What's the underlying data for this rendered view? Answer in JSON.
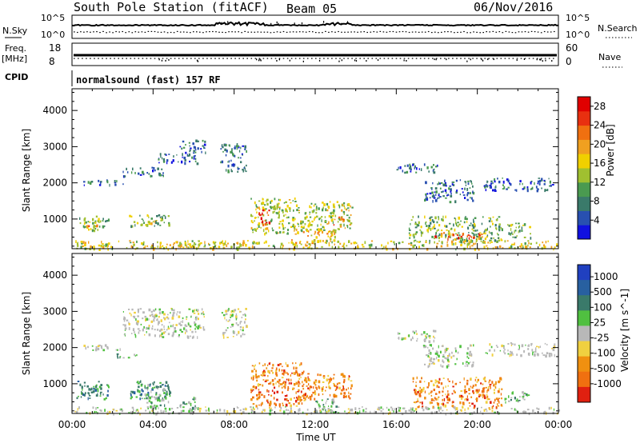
{
  "header": {
    "title": "South Pole Station (fitACF)",
    "beam": "Beam 05",
    "date": "06/Nov/2016"
  },
  "status_panels": {
    "nsky_label": "N.Sky",
    "nsearch_label": "N.Search",
    "nsky_ticks": [
      "10^5",
      "10^0"
    ],
    "nsearch_ticks": [
      "10^5",
      "10^0"
    ],
    "freq_label_1": "Freq.",
    "freq_label_2": "[MHz]",
    "freq_ticks": [
      "18",
      "8"
    ],
    "nave_label": "Nave",
    "nave_ticks": [
      "60",
      "0"
    ],
    "cpid_label": "CPID",
    "cpid_value": "normalsound (fast) 157 RF"
  },
  "chart_data": [
    {
      "type": "heatmap",
      "name": "power",
      "ylabel": "Slant Range [km]",
      "ylim": [
        180,
        4600
      ],
      "yticks": [
        1000,
        2000,
        3000,
        4000
      ],
      "xlim": [
        0,
        24
      ],
      "xticks": [
        "00:00",
        "04:00",
        "08:00",
        "12:00",
        "16:00",
        "20:00",
        "00:00"
      ],
      "colorbar": {
        "label": "Power [dB]",
        "ticks": [
          "4",
          "8",
          "12",
          "16",
          "20",
          "24",
          "28"
        ],
        "range": [
          0,
          30
        ],
        "colors": [
          "#1010e0",
          "#2850b0",
          "#3a7a6a",
          "#4a9a50",
          "#a0c030",
          "#f0d000",
          "#f0a020",
          "#f07010",
          "#e83010",
          "#e00000"
        ]
      },
      "blobs": [
        {
          "t0": 0.2,
          "t1": 1.8,
          "r0": 700,
          "r1": 1100,
          "v": 12
        },
        {
          "t0": 0.6,
          "t1": 1.2,
          "r0": 820,
          "r1": 960,
          "v": 22
        },
        {
          "t0": 2.8,
          "t1": 4.8,
          "r0": 800,
          "r1": 1150,
          "v": 12
        },
        {
          "t0": 3.6,
          "t1": 4.2,
          "r0": 880,
          "r1": 1000,
          "v": 18
        },
        {
          "t0": 0.5,
          "t1": 2.5,
          "r0": 1950,
          "r1": 2100,
          "v": 6
        },
        {
          "t0": 2.5,
          "t1": 4.5,
          "r0": 2200,
          "r1": 2450,
          "v": 6
        },
        {
          "t0": 4.2,
          "t1": 6.2,
          "r0": 2550,
          "r1": 2850,
          "v": 6
        },
        {
          "t0": 5.3,
          "t1": 6.6,
          "r0": 2850,
          "r1": 3200,
          "v": 6
        },
        {
          "t0": 7.3,
          "t1": 8.6,
          "r0": 2300,
          "r1": 3100,
          "v": 6
        },
        {
          "t0": 8.8,
          "t1": 11.0,
          "r0": 600,
          "r1": 1600,
          "v": 14
        },
        {
          "t0": 9.2,
          "t1": 9.7,
          "r0": 800,
          "r1": 1300,
          "v": 26
        },
        {
          "t0": 10.8,
          "t1": 13.0,
          "r0": 350,
          "r1": 700,
          "v": 18
        },
        {
          "t0": 11.0,
          "t1": 13.8,
          "r0": 700,
          "r1": 1500,
          "v": 14
        },
        {
          "t0": 12.8,
          "t1": 13.4,
          "r0": 850,
          "r1": 1100,
          "v": 24
        },
        {
          "t0": 16.0,
          "t1": 18.0,
          "r0": 2300,
          "r1": 2550,
          "v": 6
        },
        {
          "t0": 17.3,
          "t1": 19.8,
          "r0": 1500,
          "r1": 2100,
          "v": 6
        },
        {
          "t0": 16.6,
          "t1": 21.2,
          "r0": 380,
          "r1": 1100,
          "v": 12
        },
        {
          "t0": 17.8,
          "t1": 20.2,
          "r0": 450,
          "r1": 650,
          "v": 24
        },
        {
          "t0": 20.3,
          "t1": 23.8,
          "r0": 1800,
          "r1": 2150,
          "v": 6
        },
        {
          "t0": 21.4,
          "t1": 22.6,
          "r0": 500,
          "r1": 900,
          "v": 12
        },
        {
          "t0": 0.0,
          "t1": 24.0,
          "r0": 190,
          "r1": 420,
          "v": 16
        }
      ]
    },
    {
      "type": "heatmap",
      "name": "velocity",
      "ylabel": "Slant Range [km]",
      "ylim": [
        180,
        4600
      ],
      "yticks": [
        1000,
        2000,
        3000,
        4000
      ],
      "xlim": [
        0,
        24
      ],
      "xticks": [
        "00:00",
        "04:00",
        "08:00",
        "12:00",
        "16:00",
        "20:00",
        "00:00"
      ],
      "xlabel": "Time UT",
      "colorbar": {
        "label": "Velocity [m s^-1]",
        "ticks": [
          "1000",
          "500",
          "100",
          "25",
          "-25",
          "-100",
          "-500",
          "-1000"
        ],
        "colors": [
          "#2040c0",
          "#2860a0",
          "#3a7a6a",
          "#50c040",
          "#b8b8b8",
          "#f0d040",
          "#f09010",
          "#f07010",
          "#e02010"
        ]
      },
      "blobs": [
        {
          "t0": 0.2,
          "t1": 1.8,
          "r0": 600,
          "r1": 1100,
          "v": "pos"
        },
        {
          "t0": 2.8,
          "t1": 4.8,
          "r0": 600,
          "r1": 1100,
          "v": "pos"
        },
        {
          "t0": 3.5,
          "t1": 4.8,
          "r0": 350,
          "r1": 1000,
          "v": "gpos"
        },
        {
          "t0": 5.3,
          "t1": 6.2,
          "r0": 350,
          "r1": 650,
          "v": "gpos"
        },
        {
          "t0": 2.2,
          "t1": 3.2,
          "r0": 1700,
          "r1": 1850,
          "v": "gpos"
        },
        {
          "t0": 0.5,
          "t1": 2.5,
          "r0": 1950,
          "r1": 2100,
          "v": "grey"
        },
        {
          "t0": 2.5,
          "t1": 6.5,
          "r0": 2300,
          "r1": 3100,
          "v": "grey"
        },
        {
          "t0": 7.3,
          "t1": 8.6,
          "r0": 2300,
          "r1": 3100,
          "v": "grey"
        },
        {
          "t0": 8.8,
          "t1": 11.5,
          "r0": 400,
          "r1": 1600,
          "v": "neg"
        },
        {
          "t0": 11.0,
          "t1": 13.8,
          "r0": 600,
          "r1": 1300,
          "v": "neg"
        },
        {
          "t0": 12.0,
          "t1": 13.2,
          "r0": 200,
          "r1": 600,
          "v": "gpos"
        },
        {
          "t0": 16.0,
          "t1": 18.0,
          "r0": 2200,
          "r1": 2500,
          "v": "grey"
        },
        {
          "t0": 17.3,
          "t1": 19.8,
          "r0": 1500,
          "r1": 2100,
          "v": "grey"
        },
        {
          "t0": 16.8,
          "t1": 21.2,
          "r0": 350,
          "r1": 1200,
          "v": "neg"
        },
        {
          "t0": 21.2,
          "t1": 22.5,
          "r0": 500,
          "r1": 800,
          "v": "gpos"
        },
        {
          "t0": 20.3,
          "t1": 23.8,
          "r0": 1800,
          "r1": 2150,
          "v": "grey"
        },
        {
          "t0": 0.0,
          "t1": 24.0,
          "r0": 190,
          "r1": 380,
          "v": "grey"
        }
      ]
    }
  ]
}
